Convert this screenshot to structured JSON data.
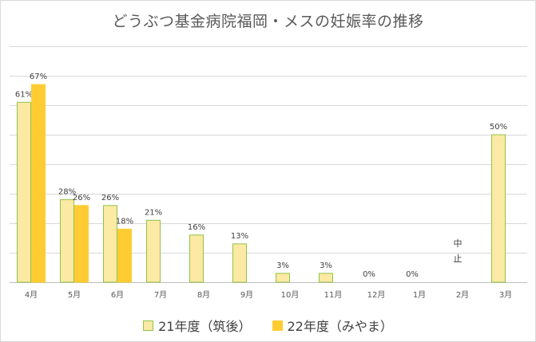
{
  "chart_data": {
    "type": "bar",
    "title": "どうぶつ基金病院福岡・メスの妊娠率の推移",
    "categories": [
      "4月",
      "5月",
      "6月",
      "7月",
      "8月",
      "9月",
      "10月",
      "11月",
      "12月",
      "1月",
      "2月",
      "3月"
    ],
    "ylim": [
      0,
      0.8
    ],
    "grid": true,
    "legend_position": "bottom",
    "series": [
      {
        "name": "21年度（筑後）",
        "color": "#fce9a4",
        "border": "#8fc44a",
        "values": [
          0.61,
          0.28,
          0.26,
          0.21,
          0.16,
          0.13,
          0.03,
          0.03,
          0.0,
          0.0,
          null,
          0.5
        ],
        "labels": [
          "61%",
          "28%",
          "26%",
          "21%",
          "16%",
          "13%",
          "3%",
          "3%",
          "0%",
          "0%",
          "",
          "50%"
        ]
      },
      {
        "name": "22年度（みやま）",
        "color": "#ffcc33",
        "border": "#ffcc33",
        "values": [
          0.67,
          0.26,
          0.18,
          null,
          null,
          null,
          null,
          null,
          null,
          null,
          null,
          null
        ],
        "labels": [
          "67%",
          "26%",
          "18%",
          "",
          "",
          "",
          "",
          "",
          "",
          "",
          "",
          ""
        ]
      }
    ],
    "annotations": [
      {
        "category": "2月",
        "text": "中止"
      }
    ]
  }
}
